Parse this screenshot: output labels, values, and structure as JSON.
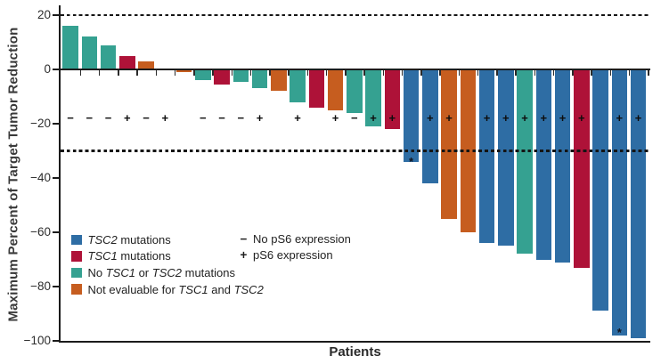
{
  "chart_data": {
    "type": "bar",
    "subtype": "waterfall",
    "title": "",
    "xlabel": "Patients",
    "ylabel": "Maximum Percent of Target Tumor Reduction",
    "ylim": [
      -100,
      25
    ],
    "grid": false,
    "reference_lines_y": [
      20,
      -30
    ],
    "y_ticks": [
      {
        "v": 20,
        "label": "20"
      },
      {
        "v": 0,
        "label": "0"
      },
      {
        "v": -20,
        "label": "−20"
      },
      {
        "v": -40,
        "label": "−40"
      },
      {
        "v": -60,
        "label": "−60"
      },
      {
        "v": -80,
        "label": "−80"
      },
      {
        "v": -100,
        "label": "−100"
      }
    ],
    "bars": [
      {
        "patient": 1,
        "value": 16,
        "group": "no_mutation",
        "ps6": "−"
      },
      {
        "patient": 2,
        "value": 12,
        "group": "no_mutation",
        "ps6": "−"
      },
      {
        "patient": 3,
        "value": 9,
        "group": "no_mutation",
        "ps6": "−"
      },
      {
        "patient": 4,
        "value": 5,
        "group": "tsc1",
        "ps6": "+"
      },
      {
        "patient": 5,
        "value": 3,
        "group": "not_evaluable",
        "ps6": "−"
      },
      {
        "patient": 6,
        "value": 0,
        "group": null,
        "ps6": "+"
      },
      {
        "patient": 7,
        "value": -1,
        "group": "not_evaluable",
        "ps6": null
      },
      {
        "patient": 8,
        "value": -4,
        "group": "no_mutation",
        "ps6": "−"
      },
      {
        "patient": 9,
        "value": -5.5,
        "group": "tsc1",
        "ps6": "−"
      },
      {
        "patient": 10,
        "value": -4.5,
        "group": "no_mutation",
        "ps6": "−"
      },
      {
        "patient": 11,
        "value": -7,
        "group": "no_mutation",
        "ps6": "+"
      },
      {
        "patient": 12,
        "value": -8,
        "group": "not_evaluable",
        "ps6": null
      },
      {
        "patient": 13,
        "value": -12,
        "group": "no_mutation",
        "ps6": "+"
      },
      {
        "patient": 14,
        "value": -14,
        "group": "tsc1",
        "ps6": null
      },
      {
        "patient": 15,
        "value": -15,
        "group": "not_evaluable",
        "ps6": "+"
      },
      {
        "patient": 16,
        "value": -16,
        "group": "no_mutation",
        "ps6": "−"
      },
      {
        "patient": 17,
        "value": -21,
        "group": "no_mutation",
        "ps6": "+"
      },
      {
        "patient": 18,
        "value": -22,
        "group": "tsc1",
        "ps6": "+"
      },
      {
        "patient": 19,
        "value": -34,
        "group": "tsc2",
        "ps6": null,
        "asterisk_at": -33
      },
      {
        "patient": 20,
        "value": -42,
        "group": "tsc2",
        "ps6": "+"
      },
      {
        "patient": 21,
        "value": -55,
        "group": "not_evaluable",
        "ps6": "+"
      },
      {
        "patient": 22,
        "value": -60,
        "group": "not_evaluable",
        "ps6": null
      },
      {
        "patient": 23,
        "value": -64,
        "group": "tsc2",
        "ps6": "+"
      },
      {
        "patient": 24,
        "value": -65,
        "group": "tsc2",
        "ps6": "+"
      },
      {
        "patient": 25,
        "value": -68,
        "group": "no_mutation",
        "ps6": "+"
      },
      {
        "patient": 26,
        "value": -70,
        "group": "tsc2",
        "ps6": "+"
      },
      {
        "patient": 27,
        "value": -71,
        "group": "tsc2",
        "ps6": "+"
      },
      {
        "patient": 28,
        "value": -73,
        "group": "tsc1",
        "ps6": "+"
      },
      {
        "patient": 29,
        "value": -89,
        "group": "tsc2",
        "ps6": null
      },
      {
        "patient": 30,
        "value": -98,
        "group": "tsc2",
        "ps6": "+",
        "asterisk_at": -96
      },
      {
        "patient": 31,
        "value": -99,
        "group": "tsc2",
        "ps6": "+"
      }
    ]
  },
  "colors": {
    "tsc2": "#2E6DA4",
    "tsc1": "#AE1238",
    "no_mutation": "#35A191",
    "not_evaluable": "#C65D1F",
    "axis": "#1b1b1b"
  },
  "legend": {
    "items": [
      {
        "group": "tsc2",
        "segments": [
          {
            "text": "TSC2",
            "italic": true
          },
          {
            "text": " mutations",
            "italic": false
          }
        ]
      },
      {
        "group": "tsc1",
        "segments": [
          {
            "text": "TSC1",
            "italic": true
          },
          {
            "text": " mutations",
            "italic": false
          }
        ]
      },
      {
        "group": "no_mutation",
        "segments": [
          {
            "text": "No ",
            "italic": false
          },
          {
            "text": "TSC1",
            "italic": true
          },
          {
            "text": " or ",
            "italic": false
          },
          {
            "text": "TSC2",
            "italic": true
          },
          {
            "text": " mutations",
            "italic": false
          }
        ]
      },
      {
        "group": "not_evaluable",
        "segments": [
          {
            "text": "Not evaluable for ",
            "italic": false
          },
          {
            "text": "TSC1",
            "italic": true
          },
          {
            "text": " and ",
            "italic": false
          },
          {
            "text": "TSC2",
            "italic": true
          }
        ]
      }
    ],
    "ps6": [
      {
        "symbol": "−",
        "label": "No pS6 expression"
      },
      {
        "symbol": "+",
        "label": "pS6 expression"
      }
    ]
  }
}
